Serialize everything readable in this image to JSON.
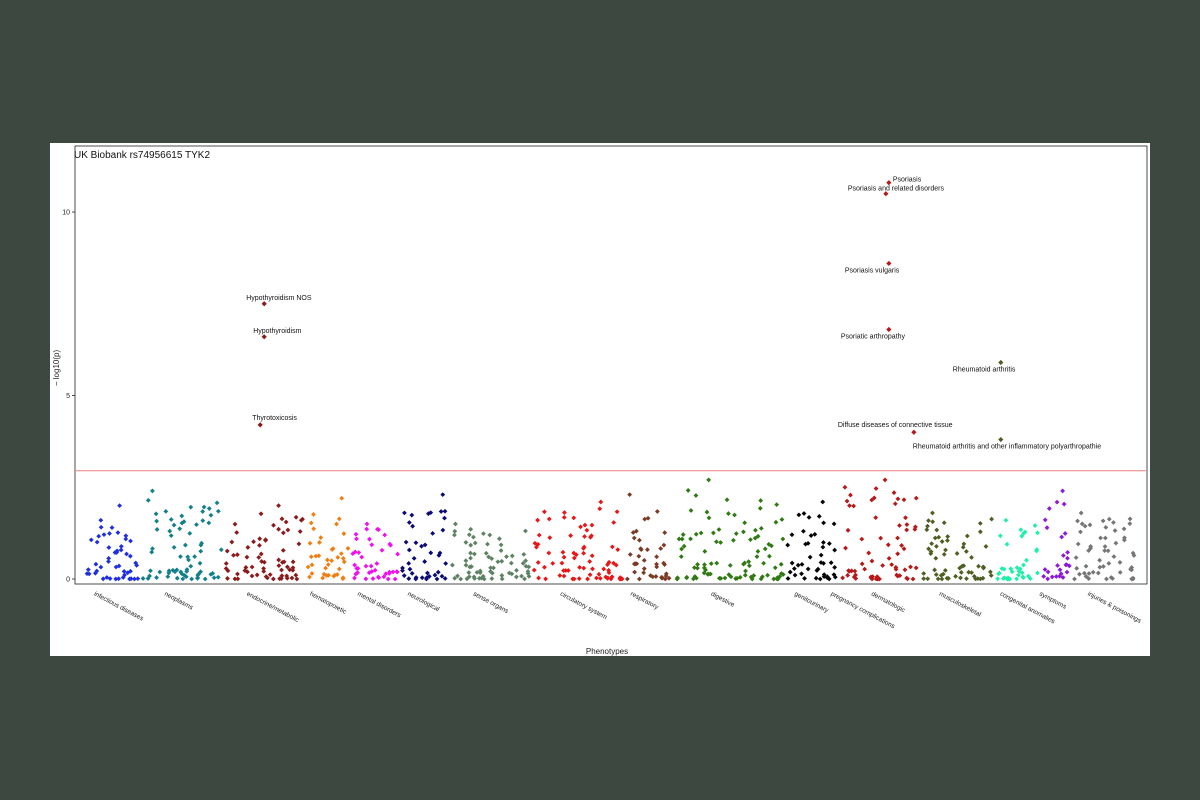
{
  "chart_data": {
    "type": "scatter",
    "title": "UK Biobank rs74956615 TYK2",
    "xlabel": "Phenotypes",
    "ylabel": "− log10(p)",
    "ylim": [
      0,
      11.5
    ],
    "yticks": [
      0,
      5,
      10
    ],
    "threshold": 2.95,
    "threshold_color": "#f08080",
    "grid": false,
    "categories": [
      {
        "name": "infectious diseases",
        "color": "#1f2fe0",
        "max": 2.0,
        "n": 48,
        "seed": 11
      },
      {
        "name": "neoplasms",
        "color": "#13808a",
        "max": 2.4,
        "n": 70,
        "seed": 23
      },
      {
        "name": "endocrine/metabolic",
        "color": "#8b1a1a",
        "max": 2.0,
        "n": 68,
        "seed": 37
      },
      {
        "name": "hematopoietic",
        "color": "#f07f12",
        "max": 2.2,
        "n": 38,
        "seed": 41
      },
      {
        "name": "mental disorders",
        "color": "#ee11ee",
        "max": 1.5,
        "n": 42,
        "seed": 53
      },
      {
        "name": "neurological",
        "color": "#0b0b78",
        "max": 2.3,
        "n": 42,
        "seed": 67
      },
      {
        "name": "sense organs",
        "color": "#5f8264",
        "max": 1.5,
        "n": 68,
        "seed": 71
      },
      {
        "name": "circulatory system",
        "color": "#e81616",
        "max": 2.1,
        "n": 78,
        "seed": 89
      },
      {
        "name": "respiratory",
        "color": "#7b3a23",
        "max": 2.3,
        "n": 40,
        "seed": 97
      },
      {
        "name": "digestive",
        "color": "#2f7a12",
        "max": 2.7,
        "n": 95,
        "seed": 103
      },
      {
        "name": "genitourinary",
        "color": "#050505",
        "max": 2.1,
        "n": 45,
        "seed": 113
      },
      {
        "name": "pregnancy complications",
        "color": "#b81818",
        "max": 2.5,
        "n": 16,
        "seed": 127
      },
      {
        "name": "dermatologic",
        "color": "#b81818",
        "max": 2.7,
        "n": 52,
        "seed": 131
      },
      {
        "name": "musculoskeletal",
        "color": "#4f5f22",
        "max": 1.8,
        "n": 62,
        "seed": 149
      },
      {
        "name": "congenital anomalies",
        "color": "#1ff0a8",
        "max": 1.6,
        "n": 40,
        "seed": 151
      },
      {
        "name": "symptoms",
        "color": "#8e1ad8",
        "max": 2.4,
        "n": 26,
        "seed": 163
      },
      {
        "name": "injuries & poisonings",
        "color": "#767676",
        "max": 1.8,
        "n": 55,
        "seed": 173
      }
    ],
    "highlights": [
      {
        "label": "Psoriasis",
        "category": "dermatologic",
        "y": 10.8,
        "color": "#b81818"
      },
      {
        "label": "Psoriasis and related disorders",
        "category": "dermatologic",
        "y": 10.5,
        "color": "#b81818"
      },
      {
        "label": "Psoriasis vulgaris",
        "category": "dermatologic",
        "y": 8.6,
        "color": "#b81818"
      },
      {
        "label": "Psoriatic arthropathy",
        "category": "dermatologic",
        "y": 6.8,
        "color": "#b81818"
      },
      {
        "label": "Rheumatoid arthritis",
        "category": "musculoskeletal",
        "y": 5.9,
        "color": "#4f5f22"
      },
      {
        "label": "Diffuse diseases of connective tissue",
        "category": "dermatologic",
        "y": 4.0,
        "color": "#b81818"
      },
      {
        "label": "Rheumatoid arthritis and other inflammatory polyarthropathie",
        "category": "musculoskeletal",
        "y": 3.8,
        "color": "#4f5f22"
      },
      {
        "label": "Hypothyroidism NOS",
        "category": "endocrine/metabolic",
        "y": 7.5,
        "color": "#8b1a1a"
      },
      {
        "label": "Hypothyroidism",
        "category": "endocrine/metabolic",
        "y": 6.6,
        "color": "#8b1a1a"
      },
      {
        "label": "Thyrotoxicosis",
        "category": "endocrine/metabolic",
        "y": 4.2,
        "color": "#8b1a1a"
      }
    ]
  }
}
